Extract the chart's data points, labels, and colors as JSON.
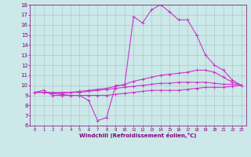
{
  "xlabel": "Windchill (Refroidissement éolien,°C)",
  "xlim": [
    -0.5,
    23.5
  ],
  "ylim": [
    6,
    18
  ],
  "xticks": [
    0,
    1,
    2,
    3,
    4,
    5,
    6,
    7,
    8,
    9,
    10,
    11,
    12,
    13,
    14,
    15,
    16,
    17,
    18,
    19,
    20,
    21,
    22,
    23
  ],
  "yticks": [
    6,
    7,
    8,
    9,
    10,
    11,
    12,
    13,
    14,
    15,
    16,
    17,
    18
  ],
  "bg_color": "#cce8e8",
  "line_color": "#cc33cc",
  "grid_color": "#aacccc",
  "line1": [
    9.3,
    9.5,
    9.0,
    9.0,
    9.0,
    9.0,
    8.5,
    6.5,
    6.8,
    10.0,
    10.0,
    16.8,
    16.2,
    17.5,
    18.0,
    17.3,
    16.5,
    16.5,
    15.0,
    13.0,
    12.0,
    11.5,
    10.5,
    10.0
  ],
  "line2": [
    9.3,
    9.3,
    9.2,
    9.2,
    9.3,
    9.4,
    9.5,
    9.6,
    9.7,
    9.9,
    10.1,
    10.4,
    10.6,
    10.8,
    11.0,
    11.1,
    11.2,
    11.3,
    11.5,
    11.5,
    11.3,
    10.8,
    10.3,
    10.0
  ],
  "line3": [
    9.3,
    9.3,
    9.3,
    9.3,
    9.3,
    9.3,
    9.4,
    9.5,
    9.6,
    9.7,
    9.8,
    9.9,
    10.0,
    10.1,
    10.2,
    10.2,
    10.3,
    10.3,
    10.3,
    10.3,
    10.2,
    10.1,
    10.1,
    10.0
  ],
  "line4": [
    9.3,
    9.3,
    9.2,
    9.1,
    9.0,
    9.0,
    9.0,
    9.0,
    9.0,
    9.1,
    9.2,
    9.3,
    9.4,
    9.5,
    9.5,
    9.5,
    9.5,
    9.6,
    9.7,
    9.8,
    9.8,
    9.8,
    9.9,
    10.0
  ],
  "figsize": [
    3.2,
    2.0
  ],
  "dpi": 100
}
